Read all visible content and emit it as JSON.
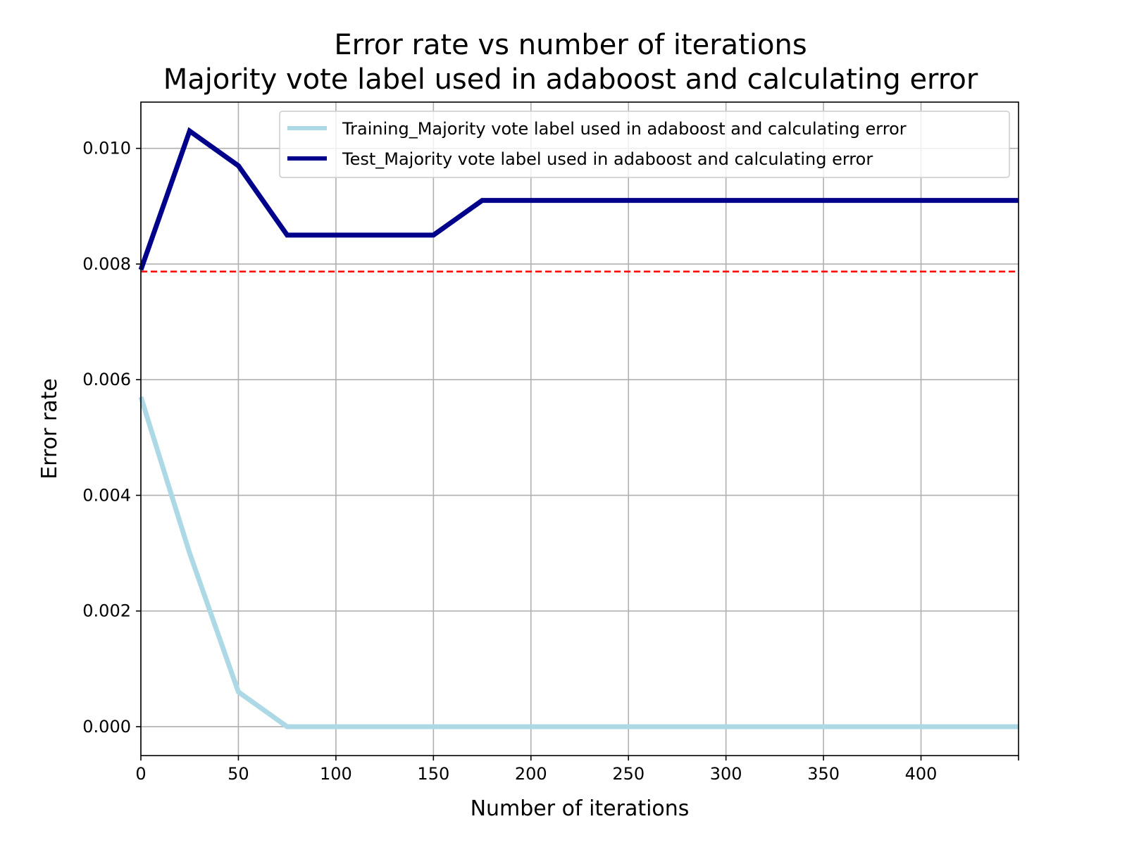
{
  "chart_data": {
    "type": "line",
    "title": "Error rate vs number of iterations",
    "subtitle": "Majority vote label used in adaboost and calculating error",
    "xlabel": "Number of iterations",
    "ylabel": "Error rate",
    "xlim": [
      0,
      450
    ],
    "ylim": [
      -0.0005,
      0.0108
    ],
    "xticks": [
      0,
      50,
      100,
      150,
      200,
      250,
      300,
      350,
      400
    ],
    "xtick_labels": [
      "0",
      "50",
      "100",
      "150",
      "200",
      "250",
      "300",
      "350",
      "400"
    ],
    "yticks": [
      0.0,
      0.002,
      0.004,
      0.006,
      0.008,
      0.01
    ],
    "ytick_labels": [
      "0.000",
      "0.002",
      "0.004",
      "0.006",
      "0.008",
      "0.010"
    ],
    "grid": true,
    "legend_position": "top-right",
    "x": [
      0,
      25,
      50,
      75,
      100,
      125,
      150,
      175,
      200,
      225,
      250,
      275,
      300,
      325,
      350,
      375,
      400,
      425,
      450
    ],
    "series": [
      {
        "name": "Training_Majority vote label used in adaboost and calculating error",
        "color": "#add8e6",
        "values": [
          0.0057,
          0.003,
          0.0006,
          0.0,
          0.0,
          0.0,
          0.0,
          0.0,
          0.0,
          0.0,
          0.0,
          0.0,
          0.0,
          0.0,
          0.0,
          0.0,
          0.0,
          0.0,
          0.0
        ]
      },
      {
        "name": "Test_Majority vote label used in adaboost and calculating error",
        "color": "#00008b",
        "values": [
          0.0079,
          0.0103,
          0.0097,
          0.0085,
          0.0085,
          0.0085,
          0.0085,
          0.0091,
          0.0091,
          0.0091,
          0.0091,
          0.0091,
          0.0091,
          0.0091,
          0.0091,
          0.0091,
          0.0091,
          0.0091,
          0.0091
        ]
      }
    ],
    "reference_line": {
      "y": 0.00787,
      "color": "#ff0000",
      "style": "dashed"
    }
  }
}
